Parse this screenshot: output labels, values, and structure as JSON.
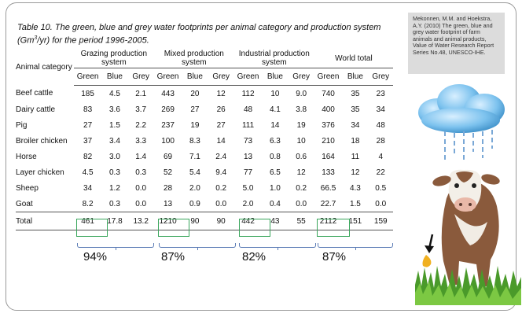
{
  "caption": {
    "part1": "Table 10. The green, blue and grey water footprints per animal category and production system (Gm",
    "sup": "3",
    "part2": "/yr) for the period 1996-2005."
  },
  "reference": "Mekonnen, M.M. and Hoekstra, A.Y. (2010) The green, blue and grey water footprint of farm animals and animal products, Value of Water Research Report Series No.48, UNESCO-IHE.",
  "table": {
    "category_header": "Animal category",
    "groups": [
      "Grazing production system",
      "Mixed production system",
      "Industrial production system",
      "World total"
    ],
    "sub_headers": [
      "Green",
      "Blue",
      "Grey"
    ],
    "rows": [
      {
        "label": "Beef cattle",
        "values": [
          "185",
          "4.5",
          "2.1",
          "443",
          "20",
          "12",
          "112",
          "10",
          "9.0",
          "740",
          "35",
          "23"
        ]
      },
      {
        "label": "Dairy cattle",
        "values": [
          "83",
          "3.6",
          "3.7",
          "269",
          "27",
          "26",
          "48",
          "4.1",
          "3.8",
          "400",
          "35",
          "34"
        ]
      },
      {
        "label": "Pig",
        "values": [
          "27",
          "1.5",
          "2.2",
          "237",
          "19",
          "27",
          "111",
          "14",
          "19",
          "376",
          "34",
          "48"
        ]
      },
      {
        "label": "Broiler chicken",
        "values": [
          "37",
          "3.4",
          "3.3",
          "100",
          "8.3",
          "14",
          "73",
          "6.3",
          "10",
          "210",
          "18",
          "28"
        ]
      },
      {
        "label": "Horse",
        "values": [
          "82",
          "3.0",
          "1.4",
          "69",
          "7.1",
          "2.4",
          "13",
          "0.8",
          "0.6",
          "164",
          "11",
          "4"
        ]
      },
      {
        "label": "Layer chicken",
        "values": [
          "4.5",
          "0.3",
          "0.3",
          "52",
          "5.4",
          "9.4",
          "77",
          "6.5",
          "12",
          "133",
          "12",
          "22"
        ]
      },
      {
        "label": "Sheep",
        "values": [
          "34",
          "1.2",
          "0.0",
          "28",
          "2.0",
          "0.2",
          "5.0",
          "1.0",
          "0.2",
          "66.5",
          "4.3",
          "0.5"
        ]
      },
      {
        "label": "Goat",
        "values": [
          "8.2",
          "0.3",
          "0.0",
          "13",
          "0.9",
          "0.0",
          "2.0",
          "0.4",
          "0.0",
          "22.7",
          "1.5",
          "0.0"
        ]
      }
    ],
    "total": {
      "label": "Total",
      "values": [
        "461",
        "17.8",
        "13.2",
        "1210",
        "90",
        "90",
        "442",
        "43",
        "55",
        "2112",
        "151",
        "159"
      ]
    }
  },
  "percentages": [
    "94%",
    "87%",
    "82%",
    "87%"
  ],
  "colors": {
    "highlight": "#3aa65c",
    "brace": "#5a7bb5",
    "cloud": "#6fb6e6",
    "grass": "#4a9a2a"
  }
}
